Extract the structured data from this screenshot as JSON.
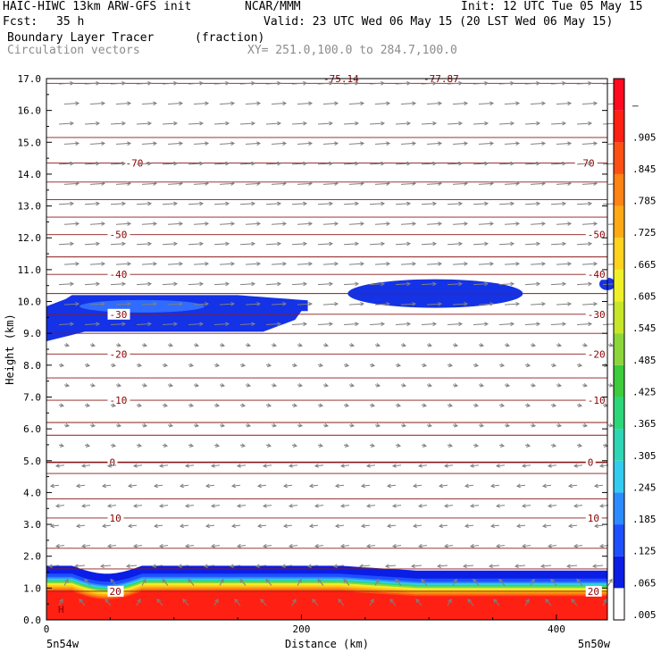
{
  "header": {
    "model": "HAIC-HIWC 13km ARW-GFS init",
    "org": "NCAR/MMM",
    "init": "Init: 12 UTC Tue 05 May 15",
    "fcst_label": "Fcst:",
    "fcst_value": "35 h",
    "valid": "Valid: 23 UTC Wed 06 May 15 (20 LST Wed 06 May 15)",
    "field": "Boundary Layer Tracer",
    "units": "(fraction)",
    "vectors": "Circulation vectors",
    "xy": "XY= 251.0,100.0 to 284.7,100.0"
  },
  "chart_data": {
    "type": "heatmap",
    "ylabel": "Height (km)",
    "xlabel": "Distance (km)",
    "xlim": [
      0,
      440
    ],
    "ylim": [
      0,
      17
    ],
    "y_ticks": [
      "0.0",
      "1.0",
      "2.0",
      "3.0",
      "4.0",
      "5.0",
      "6.0",
      "7.0",
      "8.0",
      "9.0",
      "10.0",
      "11.0",
      "12.0",
      "13.0",
      "14.0",
      "15.0",
      "16.0",
      "17.0"
    ],
    "x_ticks": [
      0,
      200,
      400
    ],
    "x_tick_labels": [
      "0",
      "200",
      "400"
    ],
    "left_endpoint": "5n54w",
    "right_endpoint": "5n50w",
    "colorbar_labels": [
      ".005",
      ".065",
      ".125",
      ".185",
      ".245",
      ".305",
      ".365",
      ".425",
      ".485",
      ".545",
      ".605",
      ".665",
      ".725",
      ".785",
      ".845",
      ".905",
      "–"
    ],
    "colorbar_colors": [
      "#ffffff",
      "#0a1ee6",
      "#1e50ff",
      "#2c8cff",
      "#33ccf0",
      "#2fd6b4",
      "#2ed67a",
      "#3ccc3c",
      "#8cd63c",
      "#c8e628",
      "#f0f02a",
      "#ffd21e",
      "#ffaa14",
      "#ff8214",
      "#ff5014",
      "#ff2014",
      "#ff0a1e"
    ],
    "isotherms": [
      {
        "label": "-70",
        "y": 14.35
      },
      {
        "label": "-50",
        "y": 12.1
      },
      {
        "label": "-40",
        "y": 10.85
      },
      {
        "label": "-30",
        "y": 9.6
      },
      {
        "label": "-20",
        "y": 8.35
      },
      {
        "label": "-10",
        "y": 6.9
      },
      {
        "label": "0",
        "y": 4.95
      },
      {
        "label": "10",
        "y": 3.2
      },
      {
        "label": "20",
        "y": 0.9
      }
    ],
    "isotherm_label_x": [
      {
        "x": 55,
        "x2": 430
      }
    ],
    "tracer_regions": [
      {
        "name": "upper-cloud-west",
        "x": [
          0,
          205
        ],
        "y": [
          9.0,
          10.3
        ],
        "value": 0.065
      },
      {
        "name": "upper-cloud-east",
        "x": [
          250,
          360
        ],
        "y": [
          9.8,
          10.8
        ],
        "value": 0.065
      },
      {
        "name": "boundary-layer",
        "x": [
          0,
          440
        ],
        "y": [
          0,
          1.7
        ],
        "value": 0.9
      }
    ],
    "top_labels": [
      "-75.14",
      "-77.87"
    ]
  }
}
